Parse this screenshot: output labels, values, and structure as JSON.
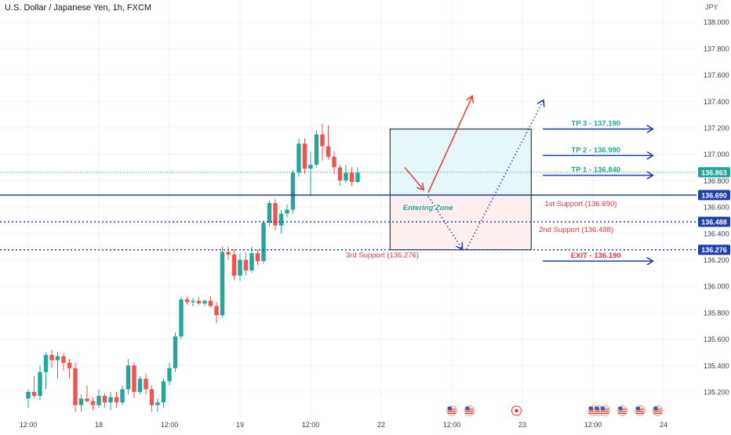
{
  "title": "U.S. Dollar / Japanese Yen, 1h, FXCM",
  "currency": "JPY",
  "colors": {
    "up": "#26a69a",
    "down": "#ef5350",
    "level_solid": "#1f3fae",
    "level_dotted": "#1f3fae",
    "upper_box_fill": "#e6f7f9",
    "lower_box_fill": "#fdeeee",
    "tp_text": "#26a69a",
    "support_text": "#e0393a",
    "exit_text": "#e0393a",
    "arrow_red": "#e53935",
    "arrow_blue": "#1f3fae",
    "label_bg": "#131722",
    "price_label_bg": "#26a69a"
  },
  "chart_data": {
    "type": "candlestick",
    "symbol": "U.S. Dollar / Japanese Yen",
    "timeframe": "1h",
    "source": "FXCM",
    "y_axis": {
      "unit": "JPY",
      "range": [
        135.1,
        138.1
      ],
      "ticks": [
        "138.000",
        "137.800",
        "137.600",
        "137.400",
        "137.200",
        "137.000",
        "136.800",
        "136.600",
        "136.400",
        "136.200",
        "136.000",
        "135.800",
        "135.600",
        "135.400",
        "135.200"
      ]
    },
    "x_axis": {
      "ticks": [
        {
          "label": "12:00",
          "bar": 0
        },
        {
          "label": "18",
          "bar": 12
        },
        {
          "label": "12:00",
          "bar": 24
        },
        {
          "label": "19",
          "bar": 36
        },
        {
          "label": "12:00",
          "bar": 48
        },
        {
          "label": "22",
          "bar": 60
        },
        {
          "label": "12:00",
          "bar": 72
        },
        {
          "label": "23",
          "bar": 84
        },
        {
          "label": "12:00",
          "bar": 96
        },
        {
          "label": "24",
          "bar": 108
        }
      ]
    },
    "candles": [
      {
        "o": 135.15,
        "h": 135.22,
        "l": 135.08,
        "c": 135.2
      },
      {
        "o": 135.2,
        "h": 135.32,
        "l": 135.15,
        "c": 135.17
      },
      {
        "o": 135.17,
        "h": 135.4,
        "l": 135.14,
        "c": 135.35
      },
      {
        "o": 135.35,
        "h": 135.5,
        "l": 135.22,
        "c": 135.48
      },
      {
        "o": 135.48,
        "h": 135.52,
        "l": 135.38,
        "c": 135.44
      },
      {
        "o": 135.44,
        "h": 135.5,
        "l": 135.3,
        "c": 135.47
      },
      {
        "o": 135.47,
        "h": 135.49,
        "l": 135.36,
        "c": 135.42
      },
      {
        "o": 135.42,
        "h": 135.45,
        "l": 135.3,
        "c": 135.38
      },
      {
        "o": 135.38,
        "h": 135.42,
        "l": 135.05,
        "c": 135.1
      },
      {
        "o": 135.1,
        "h": 135.18,
        "l": 135.05,
        "c": 135.15
      },
      {
        "o": 135.15,
        "h": 135.25,
        "l": 135.12,
        "c": 135.13
      },
      {
        "o": 135.13,
        "h": 135.16,
        "l": 135.06,
        "c": 135.1
      },
      {
        "o": 135.1,
        "h": 135.22,
        "l": 135.08,
        "c": 135.17
      },
      {
        "o": 135.17,
        "h": 135.19,
        "l": 135.08,
        "c": 135.12
      },
      {
        "o": 135.12,
        "h": 135.2,
        "l": 135.06,
        "c": 135.16
      },
      {
        "o": 135.16,
        "h": 135.2,
        "l": 135.08,
        "c": 135.12
      },
      {
        "o": 135.12,
        "h": 135.25,
        "l": 135.1,
        "c": 135.22
      },
      {
        "o": 135.22,
        "h": 135.45,
        "l": 135.18,
        "c": 135.4
      },
      {
        "o": 135.4,
        "h": 135.42,
        "l": 135.15,
        "c": 135.2
      },
      {
        "o": 135.2,
        "h": 135.32,
        "l": 135.18,
        "c": 135.3
      },
      {
        "o": 135.3,
        "h": 135.34,
        "l": 135.18,
        "c": 135.22
      },
      {
        "o": 135.22,
        "h": 135.25,
        "l": 135.05,
        "c": 135.1
      },
      {
        "o": 135.1,
        "h": 135.15,
        "l": 135.05,
        "c": 135.12
      },
      {
        "o": 135.12,
        "h": 135.3,
        "l": 135.08,
        "c": 135.28
      },
      {
        "o": 135.28,
        "h": 135.42,
        "l": 135.25,
        "c": 135.38
      },
      {
        "o": 135.38,
        "h": 135.65,
        "l": 135.35,
        "c": 135.62
      },
      {
        "o": 135.62,
        "h": 135.92,
        "l": 135.6,
        "c": 135.9
      },
      {
        "o": 135.9,
        "h": 135.92,
        "l": 135.86,
        "c": 135.88
      },
      {
        "o": 135.88,
        "h": 135.91,
        "l": 135.85,
        "c": 135.89
      },
      {
        "o": 135.89,
        "h": 135.92,
        "l": 135.86,
        "c": 135.87
      },
      {
        "o": 135.87,
        "h": 135.9,
        "l": 135.85,
        "c": 135.89
      },
      {
        "o": 135.89,
        "h": 135.92,
        "l": 135.84,
        "c": 135.85
      },
      {
        "o": 135.85,
        "h": 135.88,
        "l": 135.72,
        "c": 135.78
      },
      {
        "o": 135.78,
        "h": 136.3,
        "l": 135.76,
        "c": 136.26
      },
      {
        "o": 136.26,
        "h": 136.3,
        "l": 136.2,
        "c": 136.24
      },
      {
        "o": 136.24,
        "h": 136.28,
        "l": 136.05,
        "c": 136.08
      },
      {
        "o": 136.08,
        "h": 136.25,
        "l": 136.04,
        "c": 136.2
      },
      {
        "o": 136.2,
        "h": 136.26,
        "l": 136.08,
        "c": 136.12
      },
      {
        "o": 136.12,
        "h": 136.3,
        "l": 136.1,
        "c": 136.25
      },
      {
        "o": 136.25,
        "h": 136.28,
        "l": 136.16,
        "c": 136.19
      },
      {
        "o": 136.19,
        "h": 136.5,
        "l": 136.17,
        "c": 136.48
      },
      {
        "o": 136.48,
        "h": 136.65,
        "l": 136.45,
        "c": 136.63
      },
      {
        "o": 136.63,
        "h": 136.66,
        "l": 136.42,
        "c": 136.46
      },
      {
        "o": 136.46,
        "h": 136.58,
        "l": 136.4,
        "c": 136.55
      },
      {
        "o": 136.55,
        "h": 136.62,
        "l": 136.52,
        "c": 136.58
      },
      {
        "o": 136.58,
        "h": 136.88,
        "l": 136.55,
        "c": 136.86
      },
      {
        "o": 136.86,
        "h": 137.12,
        "l": 136.83,
        "c": 137.08
      },
      {
        "o": 137.08,
        "h": 137.12,
        "l": 136.85,
        "c": 136.89
      },
      {
        "o": 136.89,
        "h": 137.02,
        "l": 136.68,
        "c": 136.92
      },
      {
        "o": 136.92,
        "h": 137.18,
        "l": 136.9,
        "c": 137.15
      },
      {
        "o": 137.15,
        "h": 137.23,
        "l": 136.95,
        "c": 137.06
      },
      {
        "o": 137.06,
        "h": 137.22,
        "l": 136.96,
        "c": 136.98
      },
      {
        "o": 136.98,
        "h": 137.02,
        "l": 136.85,
        "c": 136.9
      },
      {
        "o": 136.9,
        "h": 136.92,
        "l": 136.76,
        "c": 136.8
      },
      {
        "o": 136.8,
        "h": 136.92,
        "l": 136.78,
        "c": 136.86
      },
      {
        "o": 136.86,
        "h": 136.9,
        "l": 136.76,
        "c": 136.79
      },
      {
        "o": 136.79,
        "h": 136.9,
        "l": 136.78,
        "c": 136.86
      }
    ],
    "last_price": "136.863",
    "levels": [
      {
        "price": 136.69,
        "label": "136.690",
        "style": "solid"
      },
      {
        "price": 136.488,
        "label": "136.488",
        "style": "dotted"
      },
      {
        "price": 136.276,
        "label": "136.276",
        "style": "dotted"
      }
    ],
    "annotations": {
      "tp3": "TP 3 - 137.190",
      "tp2": "TP 2 - 136.990",
      "tp1": "TP 1 - 136.840",
      "support1": "1st Support (136.690)",
      "support2": "2nd Support (136.488)",
      "support3": "3rd Support (136.276)",
      "entering_zone": "Entering Zone",
      "exit": "EXIT - 136.190"
    }
  },
  "events": [
    {
      "bar": 72,
      "icon": "us-flag-icon"
    },
    {
      "bar": 75,
      "icon": "us-flag-icon"
    },
    {
      "bar": 83,
      "icon": "high-impact-event-icon"
    },
    {
      "bar": 96,
      "icon": "us-flag-icon"
    },
    {
      "bar": 97,
      "icon": "us-flag-icon"
    },
    {
      "bar": 98,
      "icon": "us-flag-icon"
    },
    {
      "bar": 101,
      "icon": "us-flag-icon"
    },
    {
      "bar": 104,
      "icon": "us-flag-icon"
    },
    {
      "bar": 107,
      "icon": "us-flag-icon"
    }
  ]
}
